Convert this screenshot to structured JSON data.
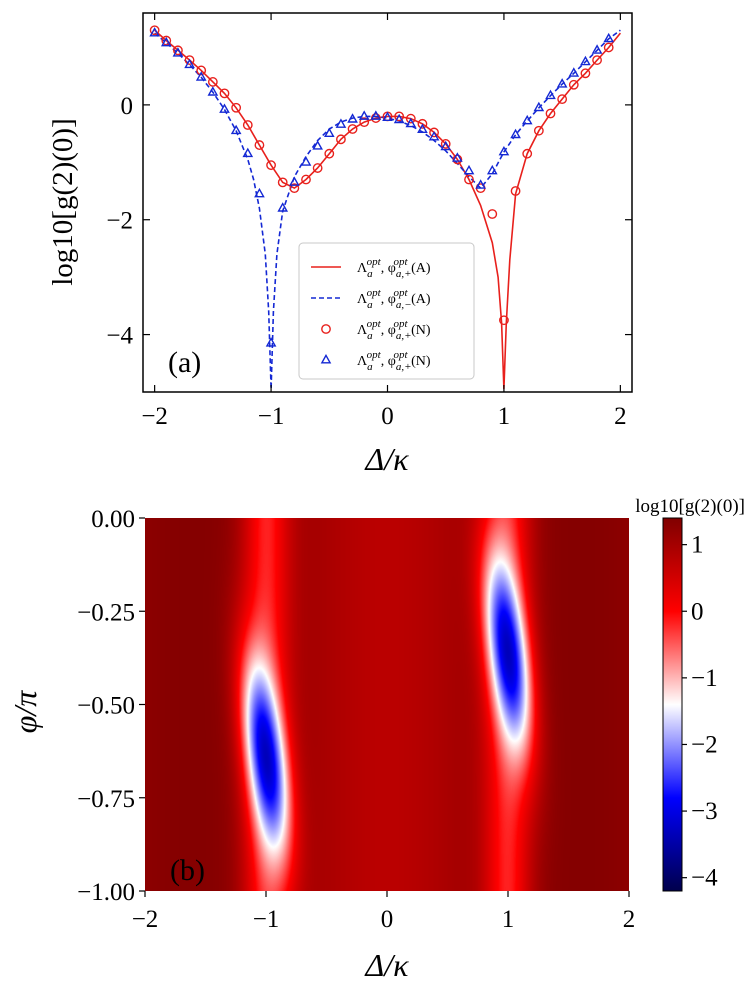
{
  "chart_data": [
    {
      "type": "line",
      "panel_label": "(a)",
      "xlabel": "Δ/κ",
      "ylabel": "log10[g(2)(0)]",
      "xlim": [
        -2.1,
        2.1
      ],
      "ylim": [
        -5.0,
        1.6
      ],
      "xticks": [
        -2,
        -1,
        0,
        1,
        2
      ],
      "xtick_labels": [
        "−2",
        "−1",
        "0",
        "1",
        "2"
      ],
      "yticks": [
        0,
        -2,
        -4
      ],
      "ytick_labels": [
        "0",
        "−2",
        "−4"
      ],
      "legend_position": "center-right",
      "series": [
        {
          "name": "Λa^opt, φa,+^opt (A)",
          "style": "solid-line",
          "color": "#e8201c",
          "x": [
            -2.0,
            -1.9,
            -1.8,
            -1.7,
            -1.6,
            -1.5,
            -1.4,
            -1.3,
            -1.2,
            -1.1,
            -1.0,
            -0.9,
            -0.8,
            -0.7,
            -0.6,
            -0.5,
            -0.4,
            -0.3,
            -0.2,
            -0.1,
            0.0,
            0.1,
            0.2,
            0.3,
            0.4,
            0.5,
            0.6,
            0.7,
            0.8,
            0.9,
            0.95,
            0.98,
            1.0,
            1.02,
            1.05,
            1.1,
            1.2,
            1.3,
            1.4,
            1.5,
            1.6,
            1.7,
            1.8,
            1.9,
            2.0
          ],
          "y": [
            1.3,
            1.12,
            0.95,
            0.78,
            0.6,
            0.4,
            0.2,
            -0.05,
            -0.35,
            -0.7,
            -1.05,
            -1.35,
            -1.45,
            -1.3,
            -1.1,
            -0.85,
            -0.6,
            -0.42,
            -0.3,
            -0.23,
            -0.2,
            -0.2,
            -0.24,
            -0.33,
            -0.48,
            -0.68,
            -0.95,
            -1.3,
            -1.75,
            -2.4,
            -3.0,
            -3.8,
            -4.95,
            -3.8,
            -2.7,
            -1.55,
            -0.85,
            -0.45,
            -0.15,
            0.1,
            0.35,
            0.55,
            0.78,
            1.0,
            1.25
          ]
        },
        {
          "name": "Λa^opt, φa,−^opt (A)",
          "style": "dashed-line",
          "color": "#1428d4",
          "x": [
            -2.0,
            -1.9,
            -1.8,
            -1.7,
            -1.6,
            -1.5,
            -1.4,
            -1.3,
            -1.2,
            -1.15,
            -1.1,
            -1.05,
            -1.02,
            -1.0,
            -0.98,
            -0.95,
            -0.9,
            -0.8,
            -0.7,
            -0.6,
            -0.5,
            -0.4,
            -0.3,
            -0.2,
            -0.1,
            0.0,
            0.1,
            0.2,
            0.3,
            0.4,
            0.5,
            0.6,
            0.7,
            0.8,
            0.9,
            1.0,
            1.1,
            1.2,
            1.3,
            1.4,
            1.5,
            1.6,
            1.7,
            1.8,
            1.9,
            2.0
          ],
          "y": [
            1.25,
            1.08,
            0.9,
            0.7,
            0.48,
            0.22,
            -0.08,
            -0.45,
            -0.95,
            -1.3,
            -1.8,
            -2.6,
            -3.6,
            -4.95,
            -3.6,
            -2.6,
            -1.85,
            -1.25,
            -0.9,
            -0.62,
            -0.42,
            -0.3,
            -0.23,
            -0.2,
            -0.2,
            -0.23,
            -0.28,
            -0.36,
            -0.47,
            -0.62,
            -0.8,
            -1.02,
            -1.25,
            -1.45,
            -1.2,
            -0.82,
            -0.52,
            -0.28,
            -0.05,
            0.16,
            0.36,
            0.55,
            0.75,
            0.95,
            1.15,
            1.3
          ]
        },
        {
          "name": "Λa^opt, φa,+^opt (N)",
          "style": "circle-markers",
          "color": "#e8201c",
          "x": [
            -2.0,
            -1.9,
            -1.8,
            -1.7,
            -1.6,
            -1.5,
            -1.4,
            -1.3,
            -1.2,
            -1.1,
            -1.0,
            -0.9,
            -0.8,
            -0.7,
            -0.6,
            -0.5,
            -0.4,
            -0.3,
            -0.2,
            -0.1,
            0.0,
            0.1,
            0.2,
            0.3,
            0.4,
            0.5,
            0.6,
            0.7,
            0.8,
            0.9,
            1.0,
            1.1,
            1.2,
            1.3,
            1.4,
            1.5,
            1.6,
            1.7,
            1.8,
            1.9
          ],
          "y": [
            1.3,
            1.12,
            0.95,
            0.78,
            0.6,
            0.4,
            0.2,
            -0.05,
            -0.35,
            -0.7,
            -1.05,
            -1.35,
            -1.45,
            -1.3,
            -1.1,
            -0.85,
            -0.6,
            -0.42,
            -0.3,
            -0.23,
            -0.2,
            -0.2,
            -0.24,
            -0.33,
            -0.48,
            -0.68,
            -0.95,
            -1.3,
            -1.45,
            -1.9,
            -3.75,
            -1.5,
            -0.85,
            -0.45,
            -0.15,
            0.1,
            0.35,
            0.55,
            0.78,
            1.0
          ]
        },
        {
          "name": "Λa^opt, φa,+^opt (N)",
          "style": "triangle-markers",
          "color": "#1428d4",
          "x": [
            -2.0,
            -1.9,
            -1.8,
            -1.7,
            -1.6,
            -1.5,
            -1.4,
            -1.3,
            -1.2,
            -1.1,
            -1.0,
            -0.9,
            -0.8,
            -0.7,
            -0.6,
            -0.5,
            -0.4,
            -0.3,
            -0.2,
            -0.1,
            0.0,
            0.1,
            0.2,
            0.3,
            0.4,
            0.5,
            0.6,
            0.7,
            0.8,
            0.9,
            1.0,
            1.1,
            1.2,
            1.3,
            1.4,
            1.5,
            1.6,
            1.7,
            1.8,
            1.9
          ],
          "y": [
            1.25,
            1.08,
            0.9,
            0.7,
            0.48,
            0.22,
            -0.08,
            -0.45,
            -0.85,
            -1.55,
            -4.15,
            -1.8,
            -1.35,
            -1.0,
            -0.72,
            -0.5,
            -0.34,
            -0.25,
            -0.2,
            -0.2,
            -0.22,
            -0.26,
            -0.33,
            -0.43,
            -0.56,
            -0.73,
            -0.93,
            -1.15,
            -1.4,
            -1.15,
            -0.82,
            -0.52,
            -0.28,
            -0.05,
            0.16,
            0.36,
            0.55,
            0.75,
            0.95,
            1.15
          ]
        }
      ]
    },
    {
      "type": "heatmap",
      "panel_label": "(b)",
      "xlabel": "Δ/κ",
      "ylabel": "φ/π",
      "xlim": [
        -2,
        2
      ],
      "ylim": [
        -1.0,
        0.0
      ],
      "xticks": [
        -2,
        -1,
        0,
        1,
        2
      ],
      "xtick_labels": [
        "−2",
        "−1",
        "0",
        "1",
        "2"
      ],
      "yticks": [
        0.0,
        -0.25,
        -0.5,
        -0.75,
        -1.0
      ],
      "ytick_labels": [
        "0.00",
        "−0.25",
        "−0.50",
        "−0.75",
        "−1.00"
      ],
      "colorbar": {
        "title": "log10[g(2)(0)]",
        "range": [
          -4.2,
          1.4
        ],
        "ticks": [
          1,
          0,
          -1,
          -2,
          -3,
          -4
        ],
        "tick_labels": [
          "1",
          "0",
          "−1",
          "−2",
          "−3",
          "−4"
        ],
        "colormap": "seismic_r",
        "colors": {
          "low": "#00004c",
          "mid_low": "#0000ff",
          "center": "#ffffff",
          "mid_high": "#ff0000",
          "high": "#800000"
        },
        "center_value": -1.3
      },
      "features": [
        {
          "kind": "dip",
          "delta": -1.0,
          "phi": -0.64,
          "min_value": -4.2
        },
        {
          "kind": "dip",
          "delta": 1.0,
          "phi": -0.36,
          "min_value": -4.2
        }
      ]
    }
  ]
}
